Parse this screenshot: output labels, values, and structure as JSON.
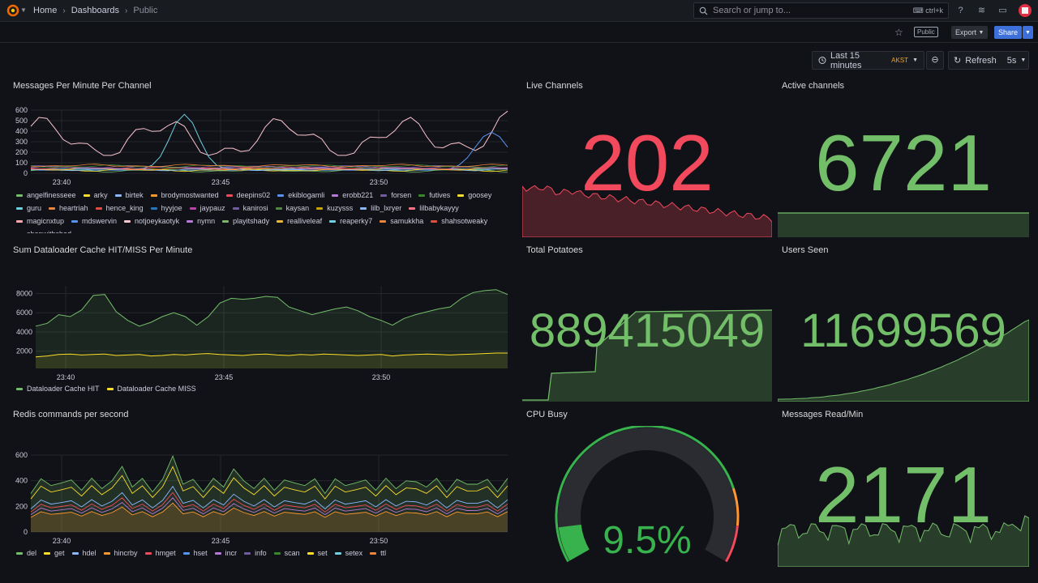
{
  "topbar": {
    "breadcrumbs": [
      "Home",
      "Dashboards",
      "Public"
    ],
    "search_placeholder": "Search or jump to...",
    "search_shortcut": "ctrl+k"
  },
  "toolbar": {
    "public_badge": "Public",
    "export_label": "Export",
    "share_label": "Share",
    "time_range": "Last 15 minutes",
    "timezone": "AKST",
    "refresh_label": "Refresh",
    "refresh_interval": "5s"
  },
  "colors": {
    "red": "#f2495c",
    "green": "#73bf69",
    "yellow": "#fade2a",
    "blue": "#5794f2",
    "orange": "#ff9830"
  },
  "panels": {
    "messages": {
      "title": "Messages Per Minute Per Channel",
      "y_ticks": [
        "600",
        "500",
        "400",
        "300",
        "200",
        "100",
        "0"
      ],
      "x_ticks": [
        "23:40",
        "23:45",
        "23:50"
      ],
      "legend": [
        {
          "label": "angelfinesseee",
          "color": "#73bf69"
        },
        {
          "label": "arky",
          "color": "#fade2a"
        },
        {
          "label": "birtek",
          "color": "#8ab8ff"
        },
        {
          "label": "brodymostwanted",
          "color": "#ff9830"
        },
        {
          "label": "deepins02",
          "color": "#f2495c"
        },
        {
          "label": "ekiblogamli",
          "color": "#5794f2"
        },
        {
          "label": "erobb221",
          "color": "#b877d9"
        },
        {
          "label": "forsen",
          "color": "#705da0"
        },
        {
          "label": "futives",
          "color": "#37872d"
        },
        {
          "label": "goosey",
          "color": "#fade2a"
        },
        {
          "label": "guru",
          "color": "#6ed0e0"
        },
        {
          "label": "heartriah",
          "color": "#ef843c"
        },
        {
          "label": "hence_king",
          "color": "#e24d42"
        },
        {
          "label": "hyyjoe",
          "color": "#1f78c1"
        },
        {
          "label": "jaypauz",
          "color": "#ba43a9"
        },
        {
          "label": "kanirosi",
          "color": "#705da0"
        },
        {
          "label": "kaysan",
          "color": "#508642"
        },
        {
          "label": "kuzysss",
          "color": "#cca300"
        },
        {
          "label": "lilb_lxryer",
          "color": "#8ab8ff"
        },
        {
          "label": "lilbabykayyy",
          "color": "#ff7383"
        },
        {
          "label": "magicnxtup",
          "color": "#ffa6b0"
        },
        {
          "label": "mdswervin",
          "color": "#5794f2"
        },
        {
          "label": "notjoeykaotyk",
          "color": "#fcc5d0"
        },
        {
          "label": "nymn",
          "color": "#b877d9"
        },
        {
          "label": "playitshady",
          "color": "#7eb26d"
        },
        {
          "label": "realliveleaf",
          "color": "#eab839"
        },
        {
          "label": "reaperky7",
          "color": "#6ed0e0"
        },
        {
          "label": "samukkha",
          "color": "#ef843c"
        },
        {
          "label": "shahsotweaky",
          "color": "#e24d42"
        },
        {
          "label": "shopwithshad",
          "color": "#1f78c1"
        }
      ]
    },
    "cache": {
      "title": "Sum Dataloader Cache HIT/MISS Per Minute",
      "y_ticks": [
        "8000",
        "6000",
        "4000",
        "2000"
      ],
      "x_ticks": [
        "23:40",
        "23:45",
        "23:50"
      ],
      "legend": [
        {
          "label": "Dataloader Cache HIT",
          "color": "#73bf69"
        },
        {
          "label": "Dataloader Cache MISS",
          "color": "#fade2a"
        }
      ]
    },
    "redis": {
      "title": "Redis commands per second",
      "y_ticks": [
        "600",
        "400",
        "200",
        "0"
      ],
      "x_ticks": [
        "23:40",
        "23:45",
        "23:50"
      ],
      "legend": [
        {
          "label": "del",
          "color": "#73bf69"
        },
        {
          "label": "get",
          "color": "#fade2a"
        },
        {
          "label": "hdel",
          "color": "#8ab8ff"
        },
        {
          "label": "hincrby",
          "color": "#ff9830"
        },
        {
          "label": "hmget",
          "color": "#f2495c"
        },
        {
          "label": "hset",
          "color": "#5794f2"
        },
        {
          "label": "incr",
          "color": "#b877d9"
        },
        {
          "label": "info",
          "color": "#705da0"
        },
        {
          "label": "scan",
          "color": "#37872d"
        },
        {
          "label": "set",
          "color": "#fade2a"
        },
        {
          "label": "setex",
          "color": "#6ed0e0"
        },
        {
          "label": "ttl",
          "color": "#ef843c"
        }
      ]
    },
    "live": {
      "title": "Live Channels",
      "value": "202",
      "color": "#f2495c"
    },
    "active": {
      "title": "Active channels",
      "value": "6721",
      "color": "#73bf69"
    },
    "potatoes": {
      "title": "Total Potatoes",
      "value": "889415049",
      "color": "#73bf69"
    },
    "users": {
      "title": "Users Seen",
      "value": "11699569",
      "color": "#73bf69"
    },
    "cpu": {
      "title": "CPU Busy",
      "value": "9.5%",
      "percent": 9.5,
      "color": "#37b24d"
    },
    "msgread": {
      "title": "Messages Read/Min",
      "value": "2171",
      "color": "#73bf69"
    }
  }
}
